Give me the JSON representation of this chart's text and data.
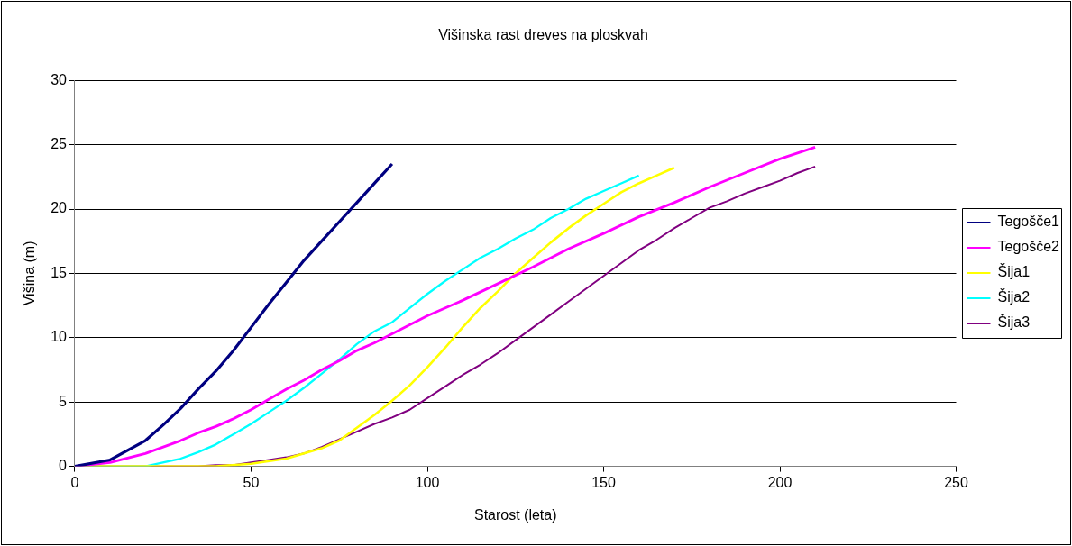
{
  "chart_data": {
    "type": "line",
    "title": "Višinska rast dreves na ploskvah",
    "xlabel": "Starost (leta)",
    "ylabel": "Višina (m)",
    "xlim": [
      0,
      250
    ],
    "xticks": [
      0,
      50,
      100,
      150,
      200,
      250
    ],
    "ylim": [
      0,
      30
    ],
    "yticks": [
      0,
      5,
      10,
      15,
      20,
      25,
      30
    ],
    "grid": "y",
    "legend": "right",
    "marker": "none",
    "line_style": "solid",
    "series": [
      {
        "name": "Tegošče1",
        "color": "#000080",
        "x": [
          0,
          10,
          20,
          25,
          30,
          35,
          40,
          45,
          50,
          55,
          60,
          65,
          70,
          75,
          80,
          85,
          90
        ],
        "values": [
          0,
          0.5,
          2,
          3.2,
          4.5,
          6,
          7.4,
          9,
          10.8,
          12.6,
          14.3,
          16,
          17.5,
          19,
          20.5,
          22,
          23.5
        ]
      },
      {
        "name": "Tegošče2",
        "color": "#ff00ff",
        "x": [
          0,
          10,
          20,
          30,
          35,
          40,
          45,
          50,
          55,
          60,
          65,
          70,
          75,
          80,
          85,
          90,
          95,
          100,
          110,
          120,
          130,
          140,
          150,
          160,
          170,
          180,
          190,
          200,
          210
        ],
        "values": [
          0,
          0.3,
          1,
          2,
          2.6,
          3.1,
          3.7,
          4.4,
          5.2,
          6,
          6.7,
          7.5,
          8.2,
          9,
          9.6,
          10.3,
          11,
          11.7,
          12.9,
          14.2,
          15.5,
          16.9,
          18.1,
          19.4,
          20.5,
          21.7,
          22.8,
          23.9,
          24.8
        ]
      },
      {
        "name": "Šija1",
        "color": "#ffff00",
        "x": [
          0,
          40,
          50,
          60,
          70,
          75,
          80,
          85,
          90,
          95,
          100,
          105,
          110,
          115,
          120,
          125,
          130,
          135,
          140,
          145,
          150,
          155,
          160,
          165,
          170
        ],
        "values": [
          0,
          0,
          0.2,
          0.6,
          1.4,
          2,
          3,
          4,
          5.1,
          6.3,
          7.7,
          9.2,
          10.8,
          12.3,
          13.6,
          15,
          16.2,
          17.4,
          18.5,
          19.5,
          20.4,
          21.3,
          22,
          22.6,
          23.2
        ]
      },
      {
        "name": "Šija2",
        "color": "#00ffff",
        "x": [
          0,
          20,
          30,
          35,
          40,
          45,
          50,
          55,
          60,
          65,
          70,
          75,
          80,
          85,
          90,
          95,
          100,
          105,
          110,
          115,
          120,
          125,
          130,
          135,
          140,
          145,
          150,
          155,
          160
        ],
        "values": [
          0,
          0,
          0.6,
          1.1,
          1.7,
          2.5,
          3.3,
          4.2,
          5.1,
          6.1,
          7.2,
          8.3,
          9.5,
          10.5,
          11.2,
          12.3,
          13.4,
          14.4,
          15.3,
          16.2,
          16.9,
          17.7,
          18.4,
          19.3,
          20,
          20.8,
          21.4,
          22,
          22.6
        ]
      },
      {
        "name": "Šija3",
        "color": "#800080",
        "x": [
          0,
          35,
          40,
          45,
          50,
          55,
          60,
          65,
          70,
          75,
          80,
          85,
          90,
          95,
          100,
          105,
          110,
          115,
          120,
          125,
          130,
          135,
          140,
          145,
          150,
          155,
          160,
          165,
          170,
          175,
          180,
          185,
          190,
          195,
          200,
          205,
          210
        ],
        "values": [
          0,
          0,
          0.1,
          0.1,
          0.3,
          0.5,
          0.7,
          1,
          1.5,
          2.1,
          2.7,
          3.3,
          3.8,
          4.4,
          5.3,
          6.2,
          7.1,
          7.9,
          8.8,
          9.8,
          10.8,
          11.8,
          12.8,
          13.8,
          14.8,
          15.8,
          16.8,
          17.6,
          18.5,
          19.3,
          20.1,
          20.6,
          21.2,
          21.7,
          22.2,
          22.8,
          23.3
        ]
      }
    ]
  }
}
